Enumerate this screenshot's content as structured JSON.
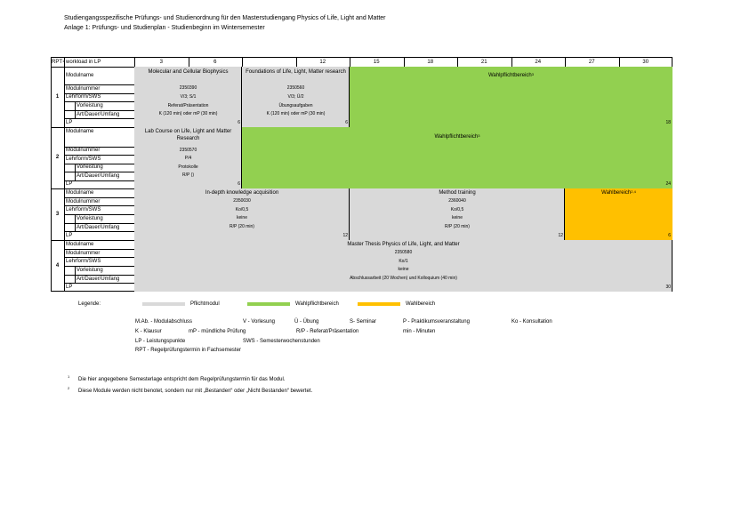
{
  "header": {
    "line1": "Studiengangsspezifische Prüfungs- und Studienordnung für den Masterstudiengang Physics of Life, Light and Matter",
    "line2": "Anlage 1: Prüfungs- und Studienplan - Studienbeginn im Wintersemester"
  },
  "table": {
    "rpt_label": "RPT",
    "rpt_sup": "1",
    "workload_label": "workload in LP",
    "columns": [
      "3",
      "6",
      "12",
      "15",
      "18",
      "21",
      "24",
      "27",
      "30"
    ],
    "row_labels": [
      "Modulname",
      "Modulnummer",
      "Lehrform/SWS",
      "Vorleistung",
      "Art/Dauer/Umfang",
      "LP"
    ],
    "blocks": [
      {
        "rpt": "1",
        "modules": [
          {
            "name": "Molecular and Cellular Biophysics",
            "number": "2350390",
            "form": "V/3; S/1",
            "prereq": "Referat/Präsentation",
            "exam": "K (120 min) oder mP (30 min)",
            "lp": "6"
          },
          {
            "name": "Foundations of Life, Light, Matter research",
            "number": "2350560",
            "form": "V/3; Ü/2",
            "prereq": "Übungsaufgaben",
            "exam": "K (120 min) oder mP (30 min)",
            "lp": "6"
          }
        ],
        "area": {
          "label": "Wahlpflichtbereich",
          "sup": "3",
          "lp": "18"
        }
      },
      {
        "rpt": "2",
        "modules": [
          {
            "name": "Lab Course on Life, Light and Matter Research",
            "number": "2350570",
            "form": "P/4",
            "prereq": "Protokolle",
            "exam": "R/P ()",
            "lp": "6"
          }
        ],
        "area": {
          "label": "Wahlpflichtbereich",
          "sup": "3",
          "lp": "24"
        }
      },
      {
        "rpt": "3",
        "modules": [
          {
            "name": "In-depth knowledge acquisition",
            "number": "2350030",
            "form": "Ko/0,5",
            "prereq": "keine",
            "exam": "R/P (20 min)",
            "lp": "12"
          },
          {
            "name": "Method training",
            "number": "2360040",
            "form": "Ko/0,5",
            "prereq": "keine",
            "exam": "R/P (20 min)",
            "lp": "12"
          }
        ],
        "area": {
          "label": "Wahlbereich",
          "sup": "2,4",
          "lp": "6"
        }
      },
      {
        "rpt": "4",
        "modules": [
          {
            "name": "Master Thesis Physics of Life, Light, and Matter",
            "number": "2350580",
            "form": "Ko/1",
            "prereq": "keine",
            "exam": "Abschlussarbeit (20 Wochen) und Kolloquium (40 min)",
            "lp": "30"
          }
        ]
      }
    ]
  },
  "legend": {
    "title": "Legende:",
    "items": [
      "Pflichtmodul",
      "Wahlpflichtbereich",
      "Wahlbereich"
    ]
  },
  "abbreviations": [
    "M.Ab. - Modulabschluss",
    "V - Vorlesung",
    "Ü - Übung",
    "S- Seminar",
    "P - Praktikumsveranstaltung",
    "Ko - Konsultation",
    "K - Klausur",
    "mP - mündliche Prüfung",
    "R/P - Referat/Präsentation",
    "min - Minuten",
    "LP - Leistungspunkte",
    "SWS - Semesterwochenstunden",
    "RPT - Regelprüfungstermin in Fachsemester"
  ],
  "footnotes": [
    {
      "mark": "1",
      "text": "Die hier angegebene Semesterlage entspricht dem Regelprüfungstermin für das Modul."
    },
    {
      "mark": "2",
      "text": "Diese Module werden nicht benotet, sondern nur mit „Bestanden“ oder „Nicht Bestanden“ bewertet."
    }
  ]
}
